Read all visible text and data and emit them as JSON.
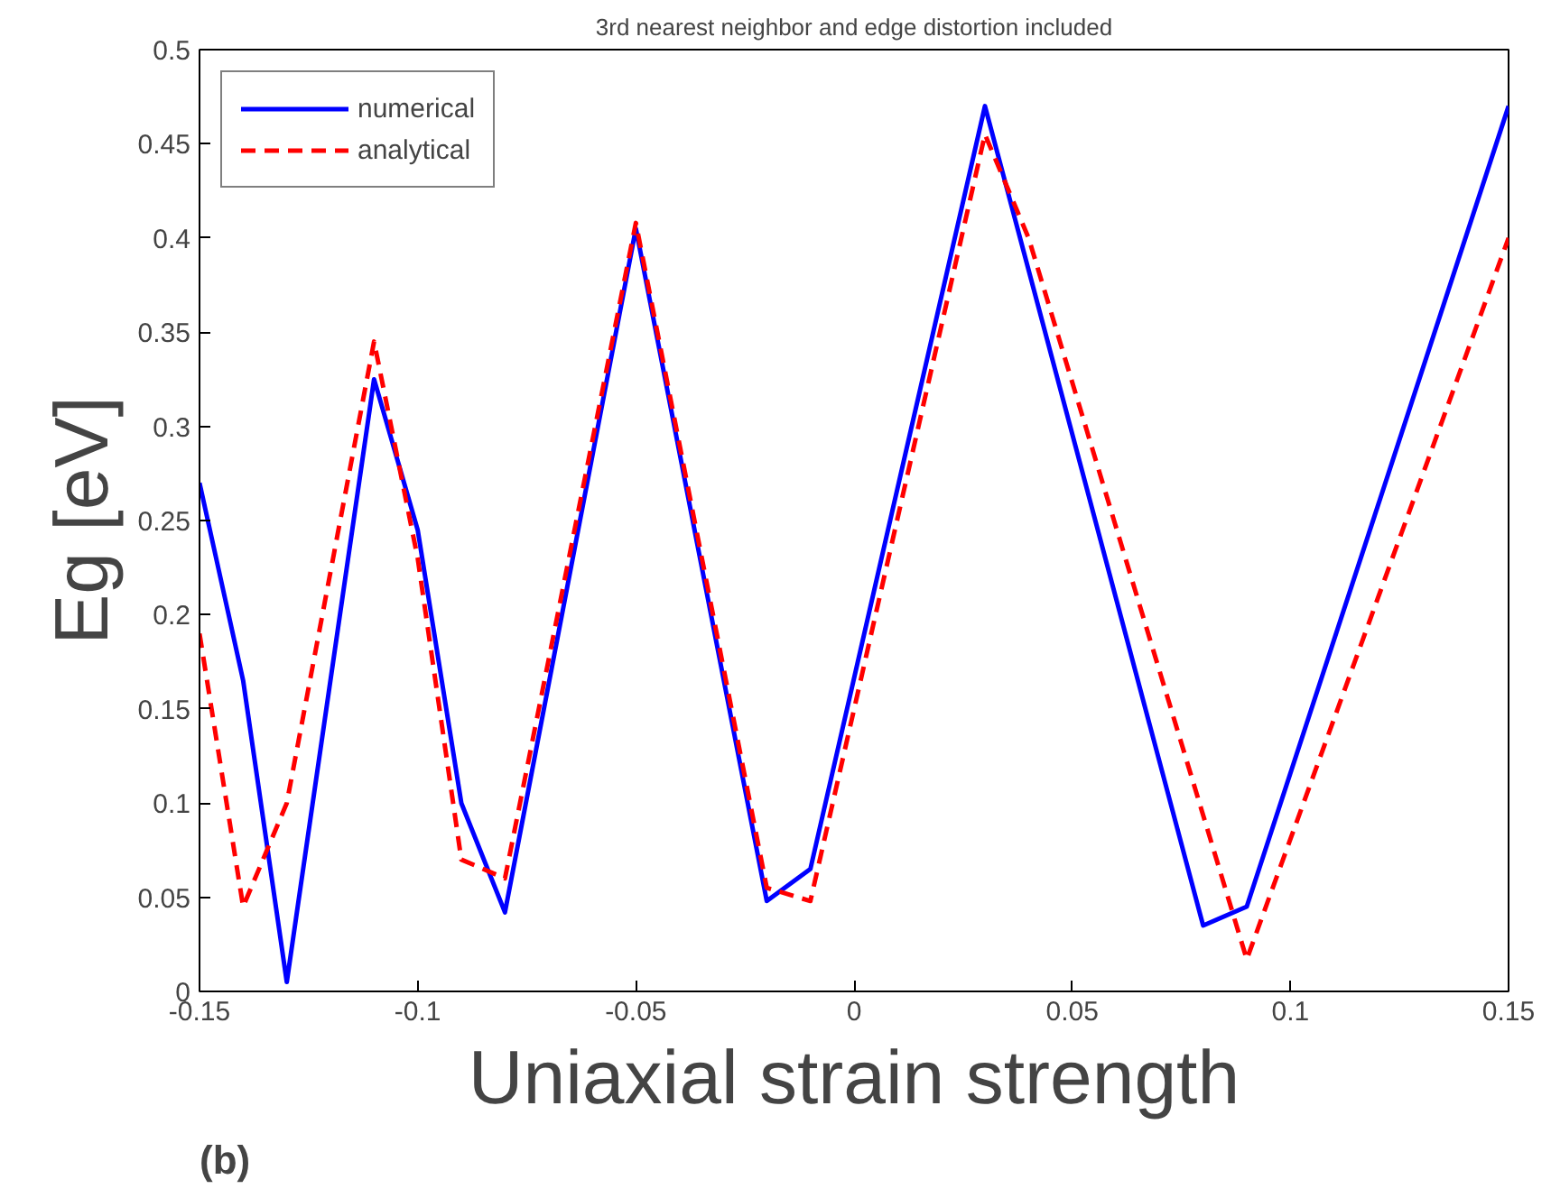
{
  "chart_data": {
    "type": "line",
    "title": "3rd nearest neighbor and edge distortion included",
    "xlabel": "Uniaxial strain strength",
    "ylabel": "Eg [eV]",
    "series": [
      {
        "name": "numerical",
        "color": "#0000ff",
        "line_style": "solid",
        "x": [
          -0.15,
          -0.14,
          -0.13,
          -0.11,
          -0.1,
          -0.09,
          -0.08,
          -0.05,
          -0.02,
          -0.01,
          0.03,
          0.08,
          0.09,
          0.15
        ],
        "values": [
          0.27,
          0.165,
          0.005,
          0.325,
          0.245,
          0.1,
          0.042,
          0.405,
          0.048,
          0.065,
          0.47,
          0.035,
          0.045,
          0.47
        ]
      },
      {
        "name": "analytical",
        "color": "#ff0000",
        "line_style": "dashed",
        "x": [
          -0.15,
          -0.14,
          -0.13,
          -0.11,
          -0.1,
          -0.09,
          -0.08,
          -0.05,
          -0.02,
          -0.01,
          0.03,
          0.04,
          0.09,
          0.15
        ],
        "values": [
          0.19,
          0.045,
          0.1,
          0.345,
          0.23,
          0.07,
          0.06,
          0.408,
          0.055,
          0.048,
          0.455,
          0.4,
          0.017,
          0.4
        ]
      }
    ],
    "xlim": [
      -0.15,
      0.15
    ],
    "ylim": [
      0,
      0.5
    ],
    "xticks": [
      -0.15,
      -0.1,
      -0.05,
      0,
      0.05,
      0.1,
      0.15
    ],
    "yticks": [
      0,
      0.05,
      0.1,
      0.15,
      0.2,
      0.25,
      0.3,
      0.35,
      0.4,
      0.45,
      0.5
    ],
    "legend": "top left",
    "annotations": [
      "(b)"
    ]
  }
}
